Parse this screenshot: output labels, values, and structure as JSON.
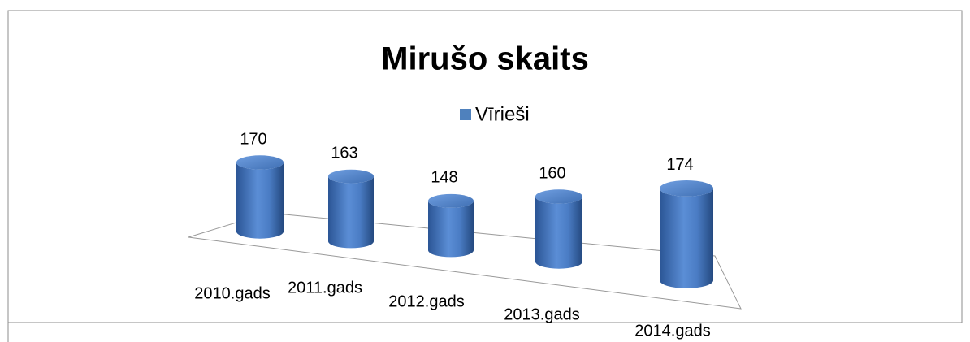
{
  "chart_data": {
    "type": "bar3d",
    "title": "Mirušo skaits",
    "categories": [
      "2010.gads",
      "2011.gads",
      "2012.gads",
      "2013.gads",
      "2014.gads"
    ],
    "series": [
      {
        "name": "Vīrieši",
        "color": "#4f81bd",
        "values": [
          170,
          163,
          148,
          160,
          174
        ]
      }
    ],
    "legend": "top"
  }
}
